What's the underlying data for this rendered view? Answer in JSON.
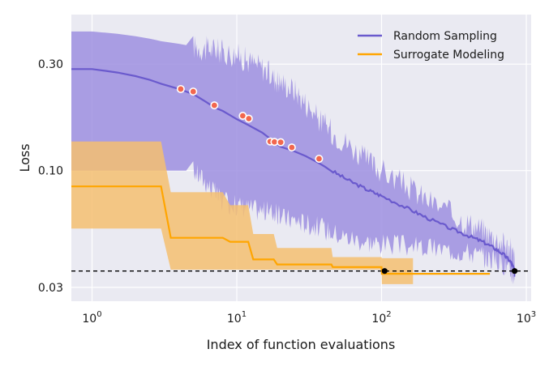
{
  "chart_data": {
    "type": "line",
    "xlabel": "Index of function evaluations",
    "ylabel": "Loss",
    "x_scale": "log",
    "y_scale": "log",
    "xlim": [
      0.72,
      1080
    ],
    "ylim": [
      0.026,
      0.5
    ],
    "grid": true,
    "background": "#eaeaf2",
    "legend_position": "top-right",
    "x_ticks": [
      {
        "value": 1,
        "base": "10",
        "exp": "0"
      },
      {
        "value": 10,
        "base": "10",
        "exp": "1"
      },
      {
        "value": 100,
        "base": "10",
        "exp": "2"
      },
      {
        "value": 1000,
        "base": "10",
        "exp": "3"
      }
    ],
    "y_ticks": [
      {
        "value": 0.03,
        "label": "0.03"
      },
      {
        "value": 0.1,
        "label": "0.10"
      },
      {
        "value": 0.3,
        "label": "0.30"
      }
    ],
    "reference_line": {
      "y": 0.0355,
      "style": "dashed",
      "color": "#000000"
    },
    "series": [
      {
        "name": "Random Sampling",
        "color": "#6a5acd",
        "band_color": "#9d8fe0",
        "x": [
          0.72,
          1,
          1.5,
          2,
          2.5,
          3,
          4,
          5,
          6,
          7,
          8,
          10,
          12,
          15,
          18,
          20,
          25,
          30,
          37,
          45,
          60,
          80,
          100,
          150,
          200,
          300,
          400,
          500,
          600,
          700,
          780,
          830
        ],
        "mean": [
          0.285,
          0.285,
          0.275,
          0.265,
          0.255,
          0.245,
          0.232,
          0.22,
          0.205,
          0.192,
          0.185,
          0.17,
          0.16,
          0.148,
          0.135,
          0.128,
          0.122,
          0.116,
          0.108,
          0.1,
          0.09,
          0.082,
          0.077,
          0.068,
          0.062,
          0.055,
          0.051,
          0.048,
          0.045,
          0.042,
          0.039,
          0.036
        ],
        "upper": [
          0.42,
          0.42,
          0.41,
          0.4,
          0.39,
          0.38,
          0.37,
          0.36,
          0.35,
          0.35,
          0.34,
          0.33,
          0.31,
          0.29,
          0.26,
          0.25,
          0.23,
          0.2,
          0.17,
          0.15,
          0.13,
          0.11,
          0.1,
          0.085,
          0.075,
          0.064,
          0.058,
          0.054,
          0.05,
          0.047,
          0.044,
          0.04
        ],
        "lower": [
          0.1,
          0.1,
          0.1,
          0.1,
          0.1,
          0.1,
          0.1,
          0.1,
          0.09,
          0.08,
          0.072,
          0.07,
          0.068,
          0.066,
          0.065,
          0.062,
          0.06,
          0.058,
          0.056,
          0.053,
          0.05,
          0.048,
          0.047,
          0.046,
          0.045,
          0.044,
          0.043,
          0.041,
          0.04,
          0.038,
          0.035,
          0.033
        ]
      },
      {
        "name": "Surrogate Modeling",
        "color": "#ffa500",
        "band_color": "#f5c071",
        "x": [
          0.72,
          3,
          3.5,
          8,
          9,
          12,
          13,
          18,
          19,
          45,
          46,
          100,
          100.5,
          560
        ],
        "mean": [
          0.085,
          0.085,
          0.05,
          0.05,
          0.048,
          0.048,
          0.04,
          0.04,
          0.038,
          0.038,
          0.037,
          0.037,
          0.0345,
          0.0345
        ],
        "upper": [
          0.135,
          0.135,
          0.08,
          0.08,
          0.07,
          0.07,
          0.052,
          0.052,
          0.045,
          0.045,
          0.041,
          0.041,
          0.0405,
          0.0405
        ],
        "lower": [
          0.055,
          0.055,
          0.036,
          0.036,
          0.036,
          0.036,
          0.036,
          0.036,
          0.036,
          0.036,
          0.036,
          0.036,
          0.031,
          0.031
        ],
        "band_x_max": 165
      }
    ],
    "improvement_markers": {
      "color": "#f2674e",
      "points": [
        {
          "x": 4.1,
          "y": 0.232
        },
        {
          "x": 5.0,
          "y": 0.226
        },
        {
          "x": 7.0,
          "y": 0.196
        },
        {
          "x": 11.0,
          "y": 0.176
        },
        {
          "x": 12.1,
          "y": 0.171
        },
        {
          "x": 17.0,
          "y": 0.135
        },
        {
          "x": 18.2,
          "y": 0.1345
        },
        {
          "x": 20.1,
          "y": 0.134
        },
        {
          "x": 24.0,
          "y": 0.127
        },
        {
          "x": 37.0,
          "y": 0.113
        }
      ]
    },
    "endpoint_markers": {
      "color": "#000000",
      "points": [
        {
          "x": 105,
          "y": 0.0355
        },
        {
          "x": 830,
          "y": 0.0355
        }
      ]
    }
  }
}
